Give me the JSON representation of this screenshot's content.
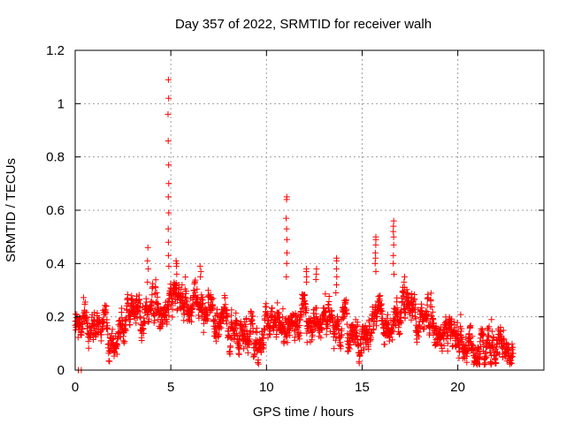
{
  "chart_data": {
    "type": "scatter",
    "title": "Day 357 of 2022, SRMTID for receiver walh",
    "xlabel": "GPS time / hours",
    "ylabel": "SRMTID / TECUs",
    "xlim": [
      0,
      24.5
    ],
    "ylim": [
      0,
      1.2
    ],
    "xticks": [
      0,
      5,
      10,
      15,
      20
    ],
    "xtick_labels": [
      "0",
      "5",
      "10",
      "15",
      "20"
    ],
    "yticks": [
      0,
      0.2,
      0.4,
      0.6,
      0.8,
      1.0,
      1.2
    ],
    "ytick_labels": [
      "0",
      "0.2",
      "0.4",
      "0.6",
      "0.8",
      "1",
      "1.2"
    ],
    "grid": true,
    "marker": "+",
    "color": "#ff0000",
    "baseline_profile": [
      [
        0.0,
        0.16
      ],
      [
        0.5,
        0.17
      ],
      [
        1.0,
        0.15
      ],
      [
        1.5,
        0.16
      ],
      [
        2.0,
        0.17
      ],
      [
        2.5,
        0.18
      ],
      [
        3.0,
        0.18
      ],
      [
        3.5,
        0.2
      ],
      [
        4.0,
        0.22
      ],
      [
        4.5,
        0.24
      ],
      [
        5.0,
        0.28
      ],
      [
        5.5,
        0.27
      ],
      [
        6.0,
        0.23
      ],
      [
        6.5,
        0.26
      ],
      [
        7.0,
        0.21
      ],
      [
        7.5,
        0.19
      ],
      [
        8.0,
        0.18
      ],
      [
        8.5,
        0.17
      ],
      [
        9.0,
        0.15
      ],
      [
        9.5,
        0.14
      ],
      [
        10.0,
        0.14
      ],
      [
        10.5,
        0.15
      ],
      [
        11.0,
        0.16
      ],
      [
        11.5,
        0.2
      ],
      [
        12.0,
        0.22
      ],
      [
        12.5,
        0.21
      ],
      [
        13.0,
        0.19
      ],
      [
        13.5,
        0.18
      ],
      [
        14.0,
        0.19
      ],
      [
        14.5,
        0.17
      ],
      [
        15.0,
        0.16
      ],
      [
        15.5,
        0.17
      ],
      [
        16.0,
        0.2
      ],
      [
        16.5,
        0.23
      ],
      [
        17.0,
        0.21
      ],
      [
        17.5,
        0.2
      ],
      [
        18.0,
        0.19
      ],
      [
        18.5,
        0.18
      ],
      [
        19.0,
        0.17
      ],
      [
        19.5,
        0.15
      ],
      [
        20.0,
        0.12
      ],
      [
        20.5,
        0.08
      ],
      [
        21.0,
        0.07
      ],
      [
        21.5,
        0.08
      ],
      [
        22.0,
        0.09
      ],
      [
        22.5,
        0.1
      ],
      [
        22.9,
        0.08
      ]
    ],
    "baseline_spread": 0.045,
    "baseline_sample_step_hours": 0.011,
    "baseline_x_range": [
      0.0,
      22.9
    ],
    "spikes": [
      {
        "x": 4.88,
        "values": [
          1.09,
          1.02,
          0.96,
          0.86,
          0.77,
          0.7,
          0.65,
          0.59,
          0.53,
          0.48,
          0.43,
          0.39
        ]
      },
      {
        "x": 3.8,
        "values": [
          0.46,
          0.41,
          0.38,
          0.33
        ]
      },
      {
        "x": 5.3,
        "values": [
          0.41,
          0.4,
          0.39,
          0.36
        ]
      },
      {
        "x": 6.55,
        "values": [
          0.39,
          0.37,
          0.35
        ]
      },
      {
        "x": 11.05,
        "values": [
          0.65,
          0.64,
          0.57,
          0.53,
          0.49,
          0.44,
          0.4,
          0.35
        ]
      },
      {
        "x": 12.1,
        "values": [
          0.38,
          0.37,
          0.35,
          0.33
        ]
      },
      {
        "x": 12.6,
        "values": [
          0.38,
          0.36,
          0.34
        ]
      },
      {
        "x": 13.65,
        "values": [
          0.42,
          0.41,
          0.38,
          0.35,
          0.32,
          0.29
        ]
      },
      {
        "x": 15.7,
        "values": [
          0.5,
          0.49,
          0.47,
          0.44,
          0.42,
          0.4,
          0.37
        ]
      },
      {
        "x": 16.65,
        "values": [
          0.56,
          0.54,
          0.52,
          0.5,
          0.47,
          0.43,
          0.4,
          0.36
        ]
      },
      {
        "x": 17.2,
        "values": [
          0.35,
          0.33,
          0.31,
          0.29
        ]
      },
      {
        "x": 21.75,
        "values": [
          0.19
        ]
      },
      {
        "x": 0.15,
        "values": [
          0.0,
          0.0
        ]
      },
      {
        "x": 0.3,
        "values": [
          0.0
        ]
      }
    ]
  }
}
